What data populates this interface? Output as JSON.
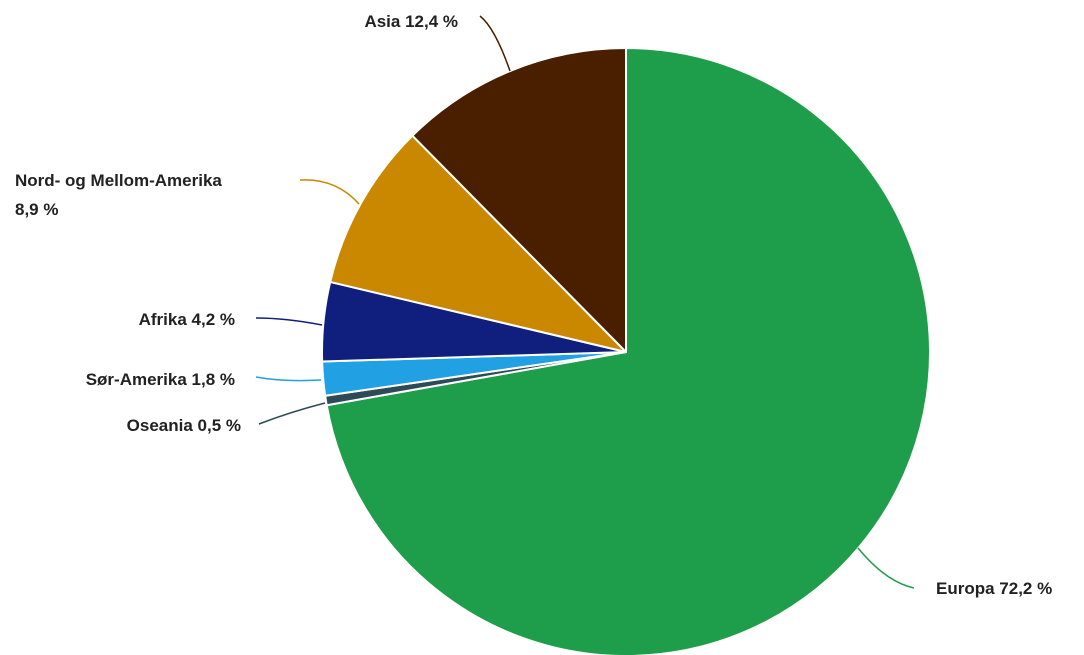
{
  "chart_data": {
    "type": "pie",
    "title": "",
    "legend": "none",
    "start_angle_deg": 0,
    "direction": "clockwise",
    "slices": [
      {
        "name": "Europa",
        "value": 72.2,
        "label": "Europa 72,2 %",
        "color": "#1e9e4a"
      },
      {
        "name": "Oseania",
        "value": 0.5,
        "label": "Oseania 0,5 %",
        "color": "#2f4a57"
      },
      {
        "name": "Sør-Amerika",
        "value": 1.8,
        "label": "Sør-Amerika 1,8 %",
        "color": "#22a0e4"
      },
      {
        "name": "Afrika",
        "value": 4.2,
        "label": "Afrika 4,2 %",
        "color": "#101f7e"
      },
      {
        "name": "Nord- og Mellom-Amerika",
        "value": 8.9,
        "label": "Nord- og Mellom-Amerika",
        "label_value": "8,9 %",
        "color": "#c98800"
      },
      {
        "name": "Asia",
        "value": 12.4,
        "label": "Asia 12,4 %",
        "color": "#4a1f00"
      }
    ]
  }
}
